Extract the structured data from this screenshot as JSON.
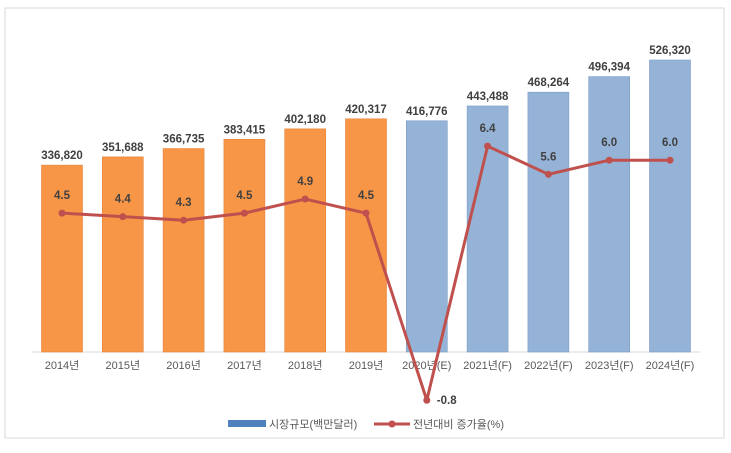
{
  "chart_data": {
    "type": "bar+line",
    "categories": [
      "2014년",
      "2015년",
      "2016년",
      "2017년",
      "2018년",
      "2019년",
      "2020년(E)",
      "2021년(F)",
      "2022년(F)",
      "2023년(F)",
      "2024년(F)"
    ],
    "series": [
      {
        "name": "시장규모(백만달러)",
        "type": "bar",
        "axis": "primary",
        "values": [
          336820,
          351688,
          366735,
          383415,
          402180,
          420317,
          416776,
          443488,
          468264,
          496394,
          526320
        ],
        "labels": [
          "336,820",
          "351,688",
          "366,735",
          "383,415",
          "402,180",
          "420,317",
          "416,776",
          "443,488",
          "468,264",
          "496,394",
          "526,320"
        ]
      },
      {
        "name": "전년대비 증가율(%)",
        "type": "line",
        "axis": "secondary",
        "values": [
          4.5,
          4.4,
          4.3,
          4.5,
          4.9,
          4.5,
          -0.8,
          6.4,
          5.6,
          6.0,
          6.0
        ],
        "labels": [
          "4.5",
          "4.4",
          "4.3",
          "4.5",
          "4.9",
          "4.5",
          "-0.8",
          "6.4",
          "5.6",
          "6.0",
          "6.0"
        ]
      }
    ],
    "bar_colors": {
      "actual": "#F79646",
      "forecast": "#95B3D7"
    },
    "line_color": "#C0504D",
    "legend_color_bar": "#4F81BD",
    "legend_placement": "bottom",
    "grid": false
  }
}
